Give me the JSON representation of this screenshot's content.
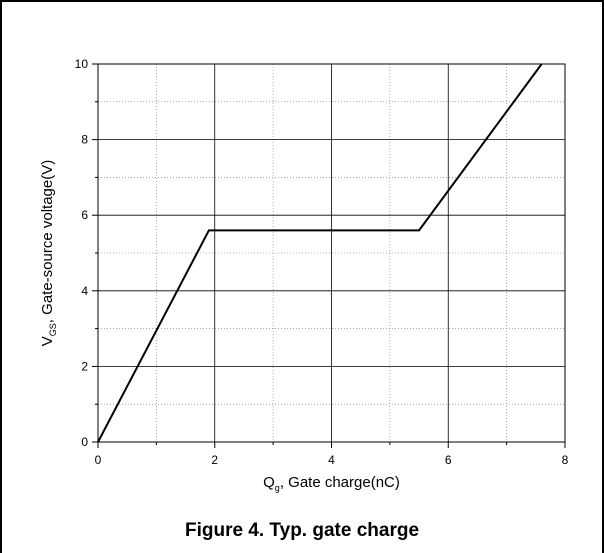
{
  "caption": "Figure 4. Typ. gate charge",
  "chart_data": {
    "type": "line",
    "xlabel": {
      "main": "Q",
      "sub": "g",
      "rest": ", Gate charge(nC)"
    },
    "ylabel": {
      "main": "V",
      "sub": "GS",
      "rest": ", Gate-source voltage(V)"
    },
    "xlim": [
      0,
      8
    ],
    "ylim": [
      0,
      10
    ],
    "x_ticks": [
      "0",
      "2",
      "4",
      "6",
      "8"
    ],
    "y_ticks": [
      "0",
      "2",
      "4",
      "6",
      "8",
      "10"
    ],
    "grid": {
      "major": true,
      "minor": true
    },
    "series": [
      {
        "x": [
          0,
          1.9,
          5.5,
          7.6
        ],
        "y": [
          0,
          5.6,
          5.6,
          10
        ],
        "color": "#000000"
      }
    ]
  }
}
